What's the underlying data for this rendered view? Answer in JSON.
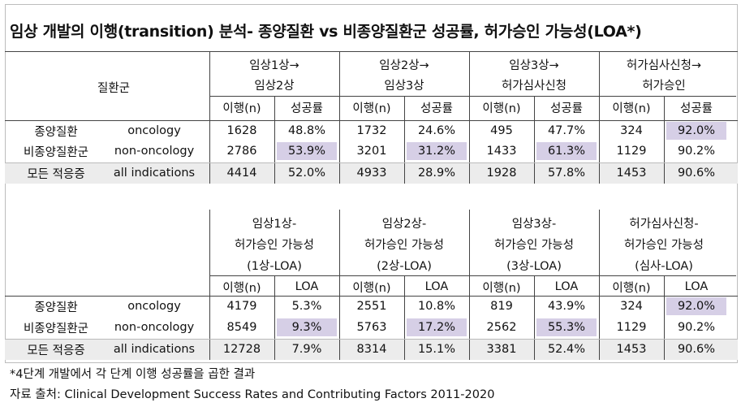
{
  "title": "임상 개발의 이행(transition) 분석- 종양질환 vs 비종양질환군 성공률, 허가승인 가능성(LOA*)",
  "row_header": "질환군",
  "table1": {
    "groups": [
      {
        "line1": "임상1상→",
        "line2": "임상2상"
      },
      {
        "line1": "임상2상→",
        "line2": "임상3상"
      },
      {
        "line1": "임상3상→",
        "line2": "허가심사신청"
      },
      {
        "line1": "허가심사신청→",
        "line2": "허가승인"
      }
    ],
    "sub_a": "이행(n)",
    "sub_b": "성공률",
    "rows": [
      {
        "ko": "종양질환",
        "en": "oncology",
        "vals": [
          "1628",
          "48.8%",
          "1732",
          "24.6%",
          "495",
          "47.7%",
          "324",
          "92.0%"
        ]
      },
      {
        "ko": "비종양질환군",
        "en": "non-oncology",
        "vals": [
          "2786",
          "53.9%",
          "3201",
          "31.2%",
          "1433",
          "61.3%",
          "1129",
          "90.2%"
        ]
      },
      {
        "ko": "모든 적응증",
        "en": "all indications",
        "vals": [
          "4414",
          "52.0%",
          "4933",
          "28.9%",
          "1928",
          "57.8%",
          "1453",
          "90.6%"
        ]
      }
    ]
  },
  "table2": {
    "groups": [
      {
        "line1": "임상1상-",
        "line2": "허가승인 가능성",
        "line3": "(1상-LOA)"
      },
      {
        "line1": "임상2상-",
        "line2": "허가승인 가능성",
        "line3": "(2상-LOA)"
      },
      {
        "line1": "임상3상-",
        "line2": "허가승인 가능성",
        "line3": "(3상-LOA)"
      },
      {
        "line1": "허가심사신청-",
        "line2": "허가승인 가능성",
        "line3": "(심사-LOA)"
      }
    ],
    "sub_a": "이행(n)",
    "sub_b": "LOA",
    "rows": [
      {
        "ko": "종양질환",
        "en": "oncology",
        "vals": [
          "4179",
          "5.3%",
          "2551",
          "10.8%",
          "819",
          "43.9%",
          "324",
          "92.0%"
        ]
      },
      {
        "ko": "비종양질환군",
        "en": "non-oncology",
        "vals": [
          "8549",
          "9.3%",
          "5763",
          "17.2%",
          "2562",
          "55.3%",
          "1129",
          "90.2%"
        ]
      },
      {
        "ko": "모든 적응증",
        "en": "all indications",
        "vals": [
          "12728",
          "7.9%",
          "8314",
          "15.1%",
          "3381",
          "52.4%",
          "1453",
          "90.6%"
        ]
      }
    ]
  },
  "footnote": "*4단계 개발에서 각 단계 이행 성공률을 곱한 결과",
  "source": "자료 출처: Clinical Development Success Rates and Contributing Factors 2011-2020",
  "highlight_color": "#d6cfe6"
}
